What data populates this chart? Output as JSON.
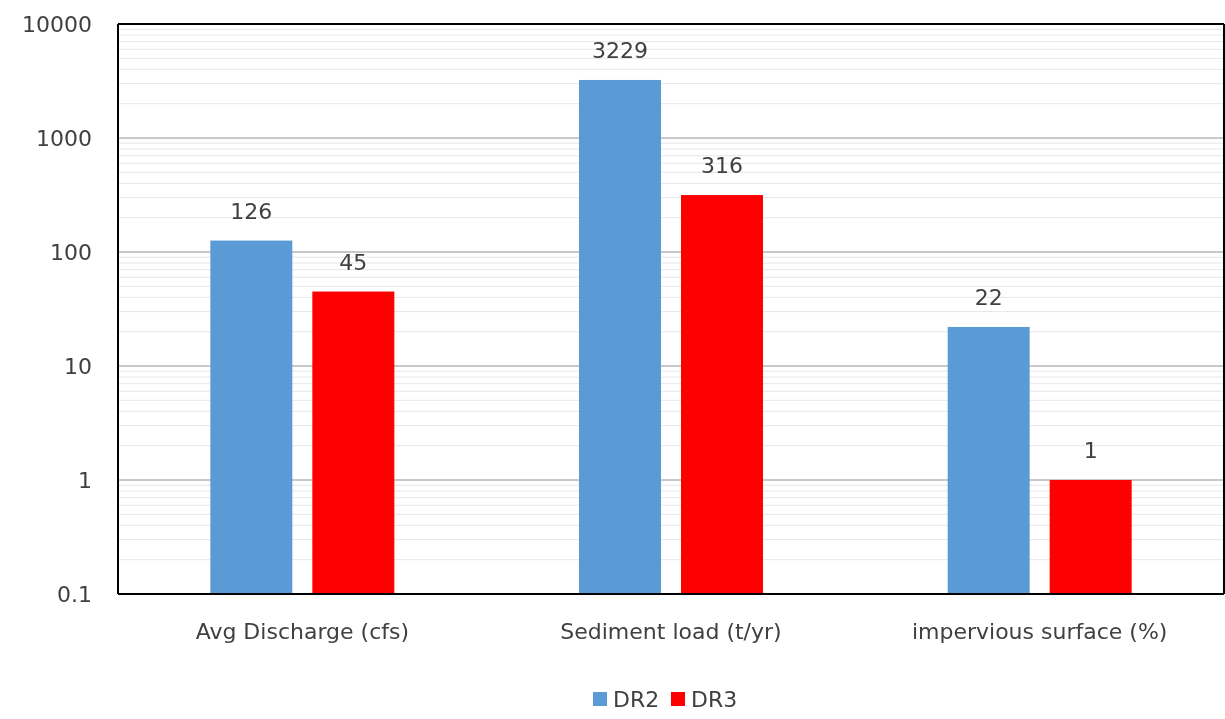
{
  "chart_data": {
    "type": "bar",
    "categories": [
      "Avg Discharge (cfs)",
      "Sediment load (t/yr)",
      "impervious surface (%)"
    ],
    "series": [
      {
        "name": "DR2",
        "color": "#5b9bd5",
        "values": [
          126,
          3229,
          22
        ]
      },
      {
        "name": "DR3",
        "color": "#ff0000",
        "values": [
          45,
          316,
          1
        ]
      }
    ],
    "log": true,
    "ylim": [
      0.1,
      10000
    ],
    "yticks": [
      0.1,
      {
        "value": 0.2,
        "label": null
      },
      {
        "value": 0.3,
        "label": null
      },
      {
        "value": 0.4,
        "label": null
      },
      {
        "value": 0.5,
        "label": null
      },
      {
        "value": 0.6,
        "label": null
      },
      {
        "value": 0.7,
        "label": null
      },
      {
        "value": 0.8,
        "label": null
      },
      {
        "value": 0.9,
        "label": null
      },
      1,
      {
        "value": 2,
        "label": null
      },
      {
        "value": 3,
        "label": null
      },
      {
        "value": 4,
        "label": null
      },
      {
        "value": 5,
        "label": null
      },
      {
        "value": 6,
        "label": null
      },
      {
        "value": 7,
        "label": null
      },
      {
        "value": 8,
        "label": null
      },
      {
        "value": 9,
        "label": null
      },
      10,
      {
        "value": 20,
        "label": null
      },
      {
        "value": 30,
        "label": null
      },
      {
        "value": 40,
        "label": null
      },
      {
        "value": 50,
        "label": null
      },
      {
        "value": 60,
        "label": null
      },
      {
        "value": 70,
        "label": null
      },
      {
        "value": 80,
        "label": null
      },
      {
        "value": 90,
        "label": null
      },
      100,
      {
        "value": 200,
        "label": null
      },
      {
        "value": 300,
        "label": null
      },
      {
        "value": 400,
        "label": null
      },
      {
        "value": 500,
        "label": null
      },
      {
        "value": 600,
        "label": null
      },
      {
        "value": 700,
        "label": null
      },
      {
        "value": 800,
        "label": null
      },
      {
        "value": 900,
        "label": null
      },
      1000,
      {
        "value": 2000,
        "label": null
      },
      {
        "value": 3000,
        "label": null
      },
      {
        "value": 4000,
        "label": null
      },
      {
        "value": 5000,
        "label": null
      },
      {
        "value": 6000,
        "label": null
      },
      {
        "value": 7000,
        "label": null
      },
      {
        "value": 8000,
        "label": null
      },
      {
        "value": 9000,
        "label": null
      },
      10000
    ],
    "grid": true,
    "data_labels": true,
    "legend": "bottom"
  }
}
